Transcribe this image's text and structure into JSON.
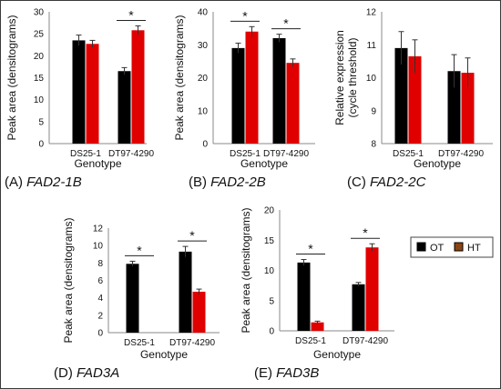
{
  "legend": {
    "items": [
      {
        "label": "OT",
        "color": "#000000"
      },
      {
        "label": "HT",
        "color": "#8B4513"
      }
    ]
  },
  "chart_data": [
    {
      "type": "bar",
      "panel": "A",
      "caption_prefix": "(A) ",
      "caption_gene": "FAD2-1B",
      "categories": [
        "DS25-1",
        "DT97-4290"
      ],
      "series": [
        {
          "name": "OT",
          "color": "#000000",
          "values": [
            23.5,
            16.5
          ],
          "errors": [
            1.2,
            0.8
          ]
        },
        {
          "name": "HT",
          "color": "#e00000",
          "values": [
            22.7,
            25.8
          ],
          "errors": [
            0.8,
            1.0
          ]
        }
      ],
      "xlabel": "Genotype",
      "ylabel": "Peak area (densitograms)",
      "ylim": [
        0,
        30
      ],
      "yticks": [
        0,
        5,
        10,
        15,
        20,
        25,
        30
      ],
      "significance": [
        {
          "category": "DT97-4290",
          "label": "*"
        }
      ]
    },
    {
      "type": "bar",
      "panel": "B",
      "caption_prefix": "(B) ",
      "caption_gene": "FAD2-2B",
      "categories": [
        "DS25-1",
        "DT97-4290"
      ],
      "series": [
        {
          "name": "OT",
          "color": "#000000",
          "values": [
            29,
            32
          ],
          "errors": [
            1.5,
            1.2
          ]
        },
        {
          "name": "HT",
          "color": "#e00000",
          "values": [
            34,
            24.5
          ],
          "errors": [
            1.5,
            1.2
          ]
        }
      ],
      "xlabel": "Genotype",
      "ylabel": "Peak area (densitograms)",
      "ylim": [
        0,
        40
      ],
      "yticks": [
        0,
        10,
        20,
        30,
        40
      ],
      "significance": [
        {
          "category": "DS25-1",
          "label": "*"
        },
        {
          "category": "DT97-4290",
          "label": "*"
        }
      ]
    },
    {
      "type": "bar",
      "panel": "C",
      "caption_prefix": "(C) ",
      "caption_gene": "FAD2-2C",
      "categories": [
        "DS25-1",
        "DT97-4290"
      ],
      "series": [
        {
          "name": "OT",
          "color": "#000000",
          "values": [
            10.9,
            10.2
          ],
          "errors": [
            0.5,
            0.5
          ]
        },
        {
          "name": "HT",
          "color": "#e00000",
          "values": [
            10.65,
            10.15
          ],
          "errors": [
            0.5,
            0.45
          ]
        }
      ],
      "xlabel": "Genotype",
      "ylabel": "Relative expression (cycle threshold)",
      "ylim": [
        8,
        12
      ],
      "yticks": [
        8,
        9,
        10,
        11,
        12
      ],
      "significance": []
    },
    {
      "type": "bar",
      "panel": "D",
      "caption_prefix": "(D) ",
      "caption_gene": "FAD3A",
      "categories": [
        "DS25-1",
        "DT97-4290"
      ],
      "series": [
        {
          "name": "OT",
          "color": "#000000",
          "values": [
            7.9,
            9.3
          ],
          "errors": [
            0.3,
            0.6
          ]
        },
        {
          "name": "HT",
          "color": "#e00000",
          "values": [
            0,
            4.7
          ],
          "errors": [
            0,
            0.3
          ]
        }
      ],
      "xlabel": "Genotype",
      "ylabel": "Peak area (densitograms)",
      "ylim": [
        0,
        12
      ],
      "yticks": [
        0,
        2,
        4,
        6,
        8,
        10,
        12
      ],
      "significance": [
        {
          "category": "DS25-1",
          "label": "*"
        },
        {
          "category": "DT97-4290",
          "label": "*"
        }
      ]
    },
    {
      "type": "bar",
      "panel": "E",
      "caption_prefix": "(E) ",
      "caption_gene": "FAD3B",
      "categories": [
        "DS25-1",
        "DT97-4290"
      ],
      "series": [
        {
          "name": "OT",
          "color": "#000000",
          "values": [
            11.3,
            7.7
          ],
          "errors": [
            0.5,
            0.3
          ]
        },
        {
          "name": "HT",
          "color": "#e00000",
          "values": [
            1.4,
            13.8
          ],
          "errors": [
            0.2,
            0.6
          ]
        }
      ],
      "xlabel": "Genotype",
      "ylabel": "Peak area (densitograms)",
      "ylim": [
        0,
        20
      ],
      "yticks": [
        0,
        5,
        10,
        15,
        20
      ],
      "significance": [
        {
          "category": "DS25-1",
          "label": "*"
        },
        {
          "category": "DT97-4290",
          "label": "*"
        }
      ]
    }
  ]
}
